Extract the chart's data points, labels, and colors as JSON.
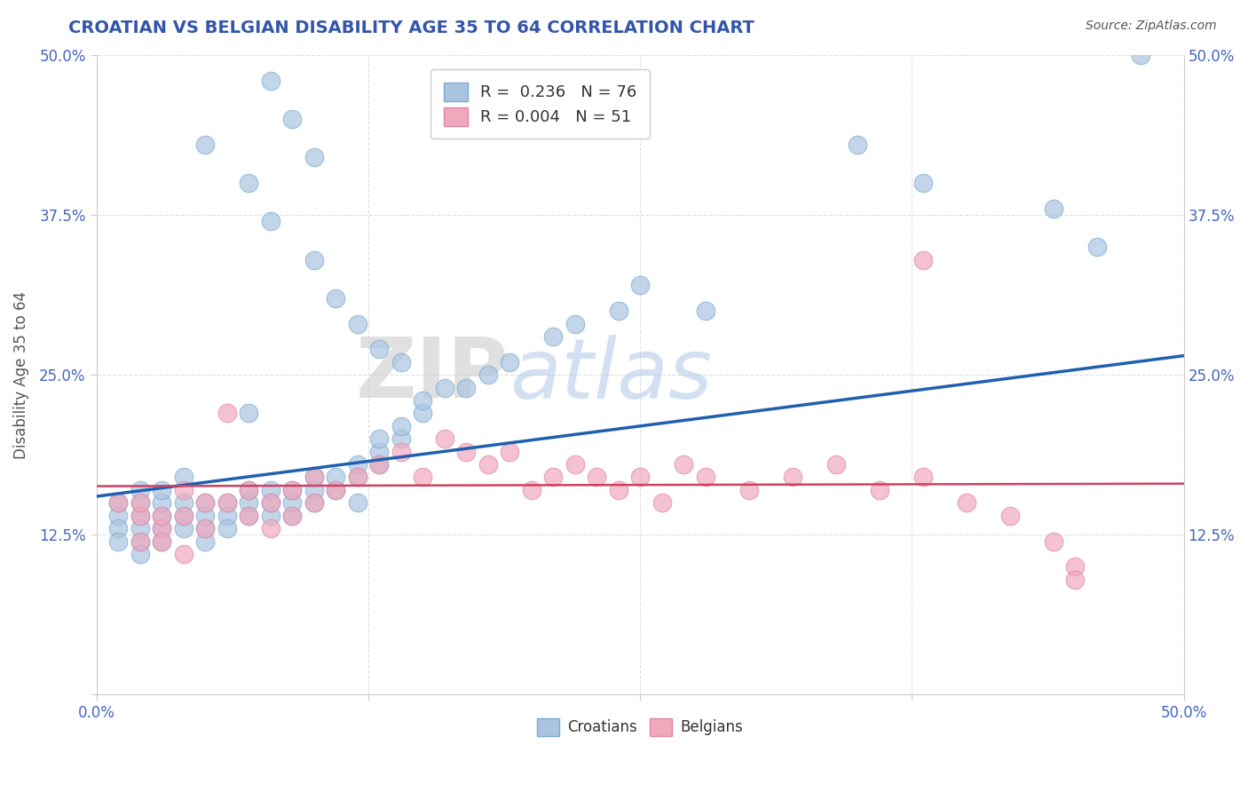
{
  "title": "CROATIAN VS BELGIAN DISABILITY AGE 35 TO 64 CORRELATION CHART",
  "source": "Source: ZipAtlas.com",
  "ylabel": "Disability Age 35 to 64",
  "xlim": [
    0.0,
    0.5
  ],
  "ylim": [
    0.0,
    0.5
  ],
  "croatian_R": 0.236,
  "croatian_N": 76,
  "belgian_R": 0.004,
  "belgian_N": 51,
  "croatian_color": "#aac4e0",
  "croatian_edge_color": "#7aacd0",
  "belgian_color": "#f0a8bc",
  "belgian_edge_color": "#e088a8",
  "croatian_line_color": "#2060b0",
  "belgian_line_color": "#d04060",
  "watermark_zip": "#c8c8c8",
  "watermark_atlas": "#b0c8e8",
  "background_color": "#ffffff",
  "grid_color": "#d8d8d8",
  "title_color": "#3355aa",
  "tick_color": "#4466bb",
  "ylabel_color": "#555555",
  "legend_label_color": "#333333",
  "legend_R_color": "#3355cc",
  "cro_x": [
    0.01,
    0.01,
    0.01,
    0.01,
    0.02,
    0.02,
    0.02,
    0.02,
    0.02,
    0.02,
    0.03,
    0.03,
    0.03,
    0.03,
    0.03,
    0.04,
    0.04,
    0.04,
    0.04,
    0.05,
    0.05,
    0.05,
    0.05,
    0.06,
    0.06,
    0.06,
    0.07,
    0.07,
    0.07,
    0.07,
    0.08,
    0.08,
    0.08,
    0.09,
    0.09,
    0.09,
    0.1,
    0.1,
    0.1,
    0.11,
    0.11,
    0.12,
    0.12,
    0.12,
    0.13,
    0.13,
    0.13,
    0.14,
    0.14,
    0.15,
    0.15,
    0.16,
    0.17,
    0.18,
    0.19,
    0.21,
    0.22,
    0.24,
    0.05,
    0.07,
    0.08,
    0.1,
    0.11,
    0.12,
    0.13,
    0.14,
    0.08,
    0.09,
    0.1,
    0.44,
    0.46,
    0.38,
    0.35,
    0.48,
    0.25,
    0.28
  ],
  "cro_y": [
    0.14,
    0.15,
    0.13,
    0.12,
    0.13,
    0.14,
    0.15,
    0.16,
    0.12,
    0.11,
    0.13,
    0.14,
    0.15,
    0.12,
    0.16,
    0.13,
    0.14,
    0.15,
    0.17,
    0.13,
    0.14,
    0.15,
    0.12,
    0.14,
    0.15,
    0.13,
    0.14,
    0.15,
    0.16,
    0.22,
    0.14,
    0.15,
    0.16,
    0.14,
    0.15,
    0.16,
    0.15,
    0.16,
    0.17,
    0.16,
    0.17,
    0.17,
    0.18,
    0.15,
    0.18,
    0.19,
    0.2,
    0.2,
    0.21,
    0.22,
    0.23,
    0.24,
    0.24,
    0.25,
    0.26,
    0.28,
    0.29,
    0.3,
    0.43,
    0.4,
    0.37,
    0.34,
    0.31,
    0.29,
    0.27,
    0.26,
    0.48,
    0.45,
    0.42,
    0.38,
    0.35,
    0.4,
    0.43,
    0.5,
    0.32,
    0.3
  ],
  "bel_x": [
    0.01,
    0.02,
    0.02,
    0.03,
    0.03,
    0.04,
    0.04,
    0.05,
    0.05,
    0.06,
    0.06,
    0.07,
    0.07,
    0.08,
    0.08,
    0.09,
    0.09,
    0.1,
    0.1,
    0.11,
    0.12,
    0.13,
    0.14,
    0.15,
    0.16,
    0.17,
    0.18,
    0.19,
    0.2,
    0.21,
    0.22,
    0.23,
    0.24,
    0.25,
    0.26,
    0.27,
    0.28,
    0.3,
    0.32,
    0.34,
    0.36,
    0.38,
    0.4,
    0.42,
    0.44,
    0.45,
    0.02,
    0.03,
    0.04,
    0.38,
    0.45
  ],
  "bel_y": [
    0.15,
    0.14,
    0.15,
    0.13,
    0.14,
    0.14,
    0.16,
    0.15,
    0.13,
    0.15,
    0.22,
    0.16,
    0.14,
    0.15,
    0.13,
    0.16,
    0.14,
    0.15,
    0.17,
    0.16,
    0.17,
    0.18,
    0.19,
    0.17,
    0.2,
    0.19,
    0.18,
    0.19,
    0.16,
    0.17,
    0.18,
    0.17,
    0.16,
    0.17,
    0.15,
    0.18,
    0.17,
    0.16,
    0.17,
    0.18,
    0.16,
    0.17,
    0.15,
    0.14,
    0.12,
    0.1,
    0.12,
    0.12,
    0.11,
    0.34,
    0.09
  ],
  "cro_line_x": [
    0.0,
    0.5
  ],
  "cro_line_y": [
    0.155,
    0.265
  ],
  "bel_line_x": [
    0.0,
    0.5
  ],
  "bel_line_y": [
    0.163,
    0.165
  ]
}
